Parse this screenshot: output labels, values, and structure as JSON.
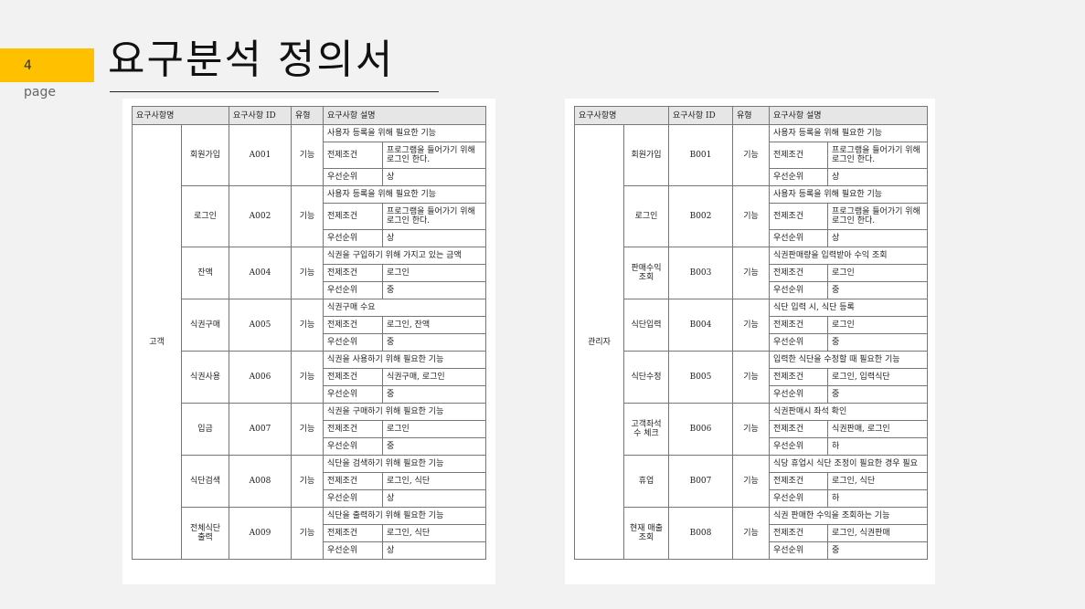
{
  "slide": {
    "number": "4",
    "page_label": "page",
    "title": "요구분석 정의서"
  },
  "headers": {
    "requirement_name": "요구사항명",
    "requirement_id": "요구사항 ID",
    "type": "유형",
    "description": "요구사항 설명"
  },
  "labels": {
    "precondition": "전제조건",
    "priority": "우선순위"
  },
  "left_table": {
    "actor": "고객",
    "rows": [
      {
        "name": "회원가입",
        "id": "A001",
        "type": "기능",
        "desc": "사용자 등록을 위해 필요한 기능",
        "precondition": "프로그램을 들어가기 위해 로그인 한다.",
        "priority": "상"
      },
      {
        "name": "로그인",
        "id": "A002",
        "type": "기능",
        "desc": "사용자 등록을 위해 필요한 기능",
        "precondition": "프로그램을 들어가기 위해 로그인 한다.",
        "priority": "상"
      },
      {
        "name": "잔액",
        "id": "A004",
        "type": "기능",
        "desc": "식권을 구입하기 위해 가지고 있는 금액",
        "precondition": "로그인",
        "priority": "중"
      },
      {
        "name": "식권구매",
        "id": "A005",
        "type": "기능",
        "desc": "식권구매 수요",
        "precondition": "로그인, 잔액",
        "priority": "중"
      },
      {
        "name": "식권사용",
        "id": "A006",
        "type": "기능",
        "desc": "식권을 사용하기 위해 필요한 기능",
        "precondition": "식권구매, 로그인",
        "priority": "중"
      },
      {
        "name": "입금",
        "id": "A007",
        "type": "기능",
        "desc": "식권을 구매하기 위해 필요한 기능",
        "precondition": "로그인",
        "priority": "중"
      },
      {
        "name": "식단검색",
        "id": "A008",
        "type": "기능",
        "desc": "식단을 검색하기 위해 필요한 기능",
        "precondition": "로그인, 식단",
        "priority": "상"
      },
      {
        "name": "전체식단 출력",
        "id": "A009",
        "type": "기능",
        "desc": "식단을 출력하기 위해 필요한 기능",
        "precondition": "로그인, 식단",
        "priority": "상"
      }
    ]
  },
  "right_table": {
    "actor": "관리자",
    "rows": [
      {
        "name": "회원가입",
        "id": "B001",
        "type": "기능",
        "desc": "사용자 등록을 위해 필요한 기능",
        "precondition": "프로그램을 들어가기 위해 로그인 한다.",
        "priority": "상"
      },
      {
        "name": "로그인",
        "id": "B002",
        "type": "기능",
        "desc": "사용자 등록을 위해 필요한 기능",
        "precondition": "프로그램을 들어가기 위해 로그인 한다.",
        "priority": "상"
      },
      {
        "name": "판매수익 조회",
        "id": "B003",
        "type": "기능",
        "desc": "식권판매량을 입력받아 수익 조회",
        "precondition": "로그인",
        "priority": "중"
      },
      {
        "name": "식단입력",
        "id": "B004",
        "type": "기능",
        "desc": "식단 입력 시, 식단 등록",
        "precondition": "로그인",
        "priority": "중"
      },
      {
        "name": "식단수정",
        "id": "B005",
        "type": "기능",
        "desc": "입력한 식단을 수정할 때 필요한 기능",
        "precondition": "로그인, 입력식단",
        "priority": "중"
      },
      {
        "name": "고객좌석 수 체크",
        "id": "B006",
        "type": "기능",
        "desc": "식권판매시 좌석 확인",
        "precondition": "식권판매, 로그인",
        "priority": "하"
      },
      {
        "name": "휴업",
        "id": "B007",
        "type": "기능",
        "desc": "식당 휴업시 식단 조정이 필요한 경우 필요",
        "precondition": "로그인, 식단",
        "priority": "하"
      },
      {
        "name": "현재 매출 조회",
        "id": "B008",
        "type": "기능",
        "desc": "식권 판매한 수익을 조회하는 기능",
        "precondition": "로그인, 식권판매",
        "priority": "중"
      }
    ]
  }
}
